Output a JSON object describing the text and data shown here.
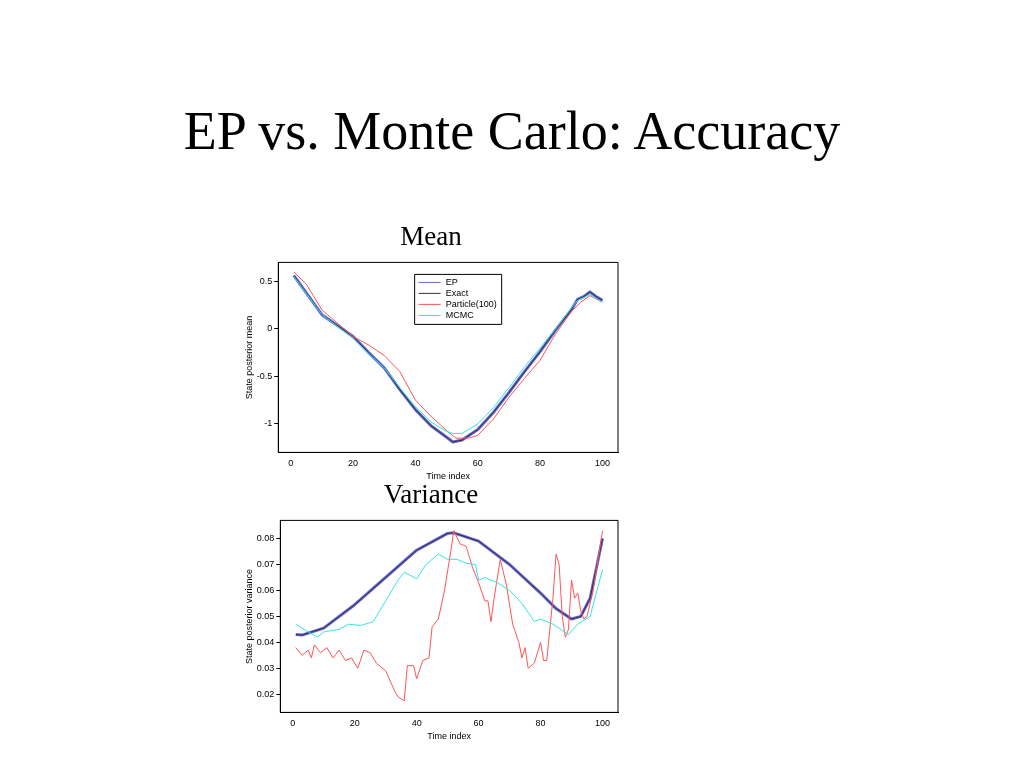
{
  "chart_data": [
    {
      "type": "line",
      "title": "EP vs. Monte Carlo: Accuracy",
      "subtitle": "Mean",
      "xlabel": "Time index",
      "ylabel": "State posterior mean",
      "xlim": [
        -4,
        105
      ],
      "xticks": [
        0,
        20,
        40,
        60,
        80,
        100
      ],
      "ylim": [
        -1.3,
        0.7
      ],
      "yticks": [
        -1,
        -0.5,
        0,
        0.5
      ],
      "grid": false,
      "legend": "top",
      "marker": "none",
      "line_style": "solid",
      "series": [
        {
          "name": "EP",
          "color": "#6666dd",
          "x": [
            1,
            10,
            20,
            25,
            30,
            35,
            40,
            45,
            50,
            52,
            55,
            60,
            65,
            70,
            75,
            80,
            85,
            90,
            92,
            94,
            96,
            98,
            100
          ],
          "values": [
            0.56,
            0.15,
            -0.08,
            -0.25,
            -0.41,
            -0.64,
            -0.85,
            -1.02,
            -1.14,
            -1.19,
            -1.17,
            -1.06,
            -0.88,
            -0.67,
            -0.45,
            -0.24,
            -0.01,
            0.2,
            0.31,
            0.34,
            0.39,
            0.34,
            0.3
          ]
        },
        {
          "name": "Exact",
          "color": "#333333",
          "x": [
            1,
            10,
            20,
            25,
            30,
            35,
            40,
            45,
            50,
            52,
            55,
            60,
            65,
            70,
            75,
            80,
            85,
            90,
            92,
            94,
            96,
            98,
            100
          ],
          "values": [
            0.56,
            0.15,
            -0.08,
            -0.25,
            -0.41,
            -0.64,
            -0.85,
            -1.02,
            -1.14,
            -1.19,
            -1.17,
            -1.06,
            -0.88,
            -0.67,
            -0.45,
            -0.24,
            -0.01,
            0.2,
            0.31,
            0.34,
            0.39,
            0.34,
            0.3
          ]
        },
        {
          "name": "Particle(100)",
          "color": "#ff5555",
          "x": [
            1,
            5,
            10,
            15,
            20,
            25,
            30,
            35,
            40,
            45,
            50,
            53,
            57,
            60,
            65,
            70,
            75,
            80,
            85,
            90,
            93,
            96,
            100
          ],
          "values": [
            0.6,
            0.47,
            0.2,
            0.06,
            -0.08,
            -0.17,
            -0.28,
            -0.45,
            -0.75,
            -0.92,
            -1.07,
            -1.15,
            -1.15,
            -1.12,
            -0.95,
            -0.72,
            -0.52,
            -0.33,
            -0.05,
            0.18,
            0.28,
            0.35,
            0.28
          ]
        },
        {
          "name": "MCMC",
          "color": "#33e5e5",
          "x": [
            1,
            10,
            20,
            25,
            30,
            35,
            40,
            45,
            50,
            52,
            55,
            60,
            65,
            70,
            75,
            80,
            85,
            90,
            92,
            96,
            100
          ],
          "values": [
            0.55,
            0.15,
            -0.1,
            -0.26,
            -0.41,
            -0.62,
            -0.82,
            -0.98,
            -1.08,
            -1.1,
            -1.1,
            -1.0,
            -0.83,
            -0.62,
            -0.4,
            -0.2,
            0.0,
            0.22,
            0.3,
            0.36,
            0.28
          ]
        }
      ]
    },
    {
      "type": "line",
      "title": "Variance",
      "xlabel": "Time index",
      "ylabel": "State posterior variance",
      "xlim": [
        -4,
        105
      ],
      "xticks": [
        0,
        20,
        40,
        60,
        80,
        100
      ],
      "ylim": [
        0.013,
        0.087
      ],
      "yticks": [
        0.02,
        0.03,
        0.04,
        0.05,
        0.06,
        0.07,
        0.08
      ],
      "grid": false,
      "marker": "none",
      "line_style": "solid",
      "series": [
        {
          "color": "#6666dd",
          "x": [
            1,
            3,
            10,
            20,
            30,
            40,
            50,
            52,
            60,
            70,
            80,
            85,
            90,
            93,
            96,
            100
          ],
          "values": [
            0.043,
            0.0428,
            0.0455,
            0.0545,
            0.065,
            0.0755,
            0.082,
            0.0822,
            0.079,
            0.07,
            0.059,
            0.053,
            0.049,
            0.05,
            0.057,
            0.08
          ]
        },
        {
          "color": "#333333",
          "x": [
            1,
            3,
            10,
            20,
            30,
            40,
            50,
            52,
            60,
            70,
            80,
            85,
            90,
            93,
            96,
            100
          ],
          "values": [
            0.043,
            0.0428,
            0.0455,
            0.0545,
            0.065,
            0.0755,
            0.082,
            0.0822,
            0.079,
            0.07,
            0.059,
            0.053,
            0.049,
            0.05,
            0.057,
            0.08
          ]
        },
        {
          "color": "#ff5555",
          "x": [
            1,
            3,
            5,
            6,
            7,
            9,
            11,
            13,
            15,
            17,
            19,
            21,
            23,
            25,
            27,
            30,
            33,
            34,
            36,
            37,
            39,
            40,
            42,
            44,
            45,
            47,
            49,
            51,
            52,
            54,
            56,
            58,
            60,
            62,
            63,
            64,
            65,
            67,
            69,
            71,
            73,
            74,
            75,
            76,
            78,
            80,
            81,
            82,
            84,
            85,
            86,
            87,
            88,
            89,
            90,
            91,
            92,
            93,
            94,
            95,
            97,
            100
          ],
          "values": [
            0.038,
            0.035,
            0.037,
            0.034,
            0.039,
            0.036,
            0.038,
            0.034,
            0.037,
            0.033,
            0.034,
            0.03,
            0.037,
            0.036,
            0.032,
            0.029,
            0.021,
            0.019,
            0.0175,
            0.031,
            0.031,
            0.026,
            0.033,
            0.034,
            0.046,
            0.049,
            0.06,
            0.075,
            0.083,
            0.078,
            0.077,
            0.069,
            0.063,
            0.056,
            0.056,
            0.048,
            0.057,
            0.072,
            0.062,
            0.047,
            0.04,
            0.034,
            0.038,
            0.03,
            0.032,
            0.04,
            0.033,
            0.033,
            0.057,
            0.074,
            0.07,
            0.05,
            0.042,
            0.045,
            0.064,
            0.057,
            0.059,
            0.052,
            0.049,
            0.05,
            0.06,
            0.083
          ]
        },
        {
          "color": "#33e5e5",
          "x": [
            1,
            5,
            8,
            10,
            15,
            18,
            22,
            26,
            30,
            34,
            36,
            40,
            43,
            47,
            50,
            53,
            56,
            59,
            60,
            62,
            66,
            70,
            74,
            78,
            80,
            84,
            89,
            92,
            96,
            100
          ],
          "values": [
            0.047,
            0.044,
            0.042,
            0.044,
            0.045,
            0.047,
            0.0465,
            0.048,
            0.056,
            0.064,
            0.067,
            0.0645,
            0.07,
            0.074,
            0.072,
            0.072,
            0.0705,
            0.07,
            0.064,
            0.065,
            0.063,
            0.06,
            0.055,
            0.048,
            0.049,
            0.047,
            0.043,
            0.047,
            0.05,
            0.068
          ]
        }
      ]
    }
  ]
}
